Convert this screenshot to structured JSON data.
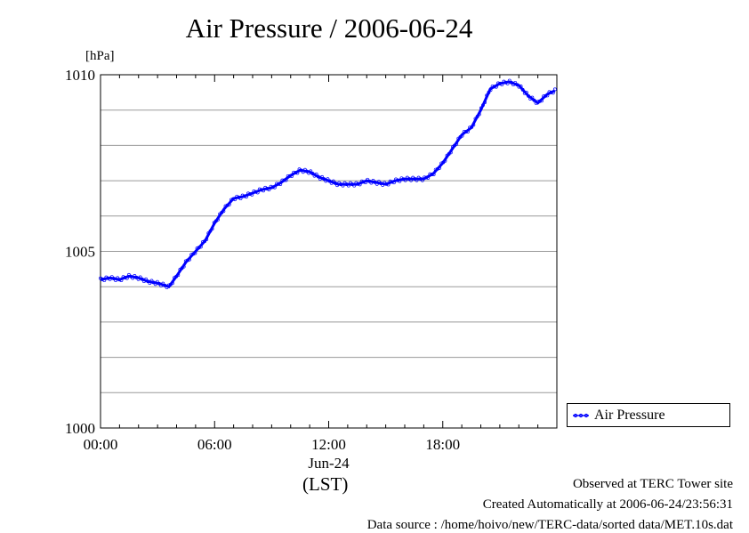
{
  "chart_data": {
    "type": "line",
    "title": "Air Pressure / 2006-06-24",
    "ylabel": "[hPa]",
    "xlabel": "(LST)",
    "date_label": "Jun-24",
    "ylim": [
      1000,
      1010
    ],
    "xlim": [
      0,
      24
    ],
    "y_ticks": [
      {
        "value": 1000,
        "label": "1000"
      },
      {
        "value": 1005,
        "label": "1005"
      },
      {
        "value": 1010,
        "label": "1010"
      }
    ],
    "x_ticks": [
      {
        "value": 0,
        "label": "00:00"
      },
      {
        "value": 6,
        "label": "06:00"
      },
      {
        "value": 12,
        "label": "12:00"
      },
      {
        "value": 18,
        "label": "18:00"
      }
    ],
    "grid": true,
    "legend_position": "right",
    "series": [
      {
        "name": "Air Pressure",
        "color": "#0000ff",
        "x": [
          0,
          0.5,
          1.0,
          1.5,
          2.0,
          2.5,
          3.0,
          3.3,
          3.6,
          4.0,
          4.5,
          5.0,
          5.5,
          6.0,
          6.5,
          7.0,
          7.5,
          8.0,
          8.5,
          9.0,
          9.5,
          10.0,
          10.5,
          11.0,
          11.5,
          12.0,
          12.5,
          13.0,
          13.5,
          14.0,
          14.5,
          15.0,
          15.5,
          16.0,
          16.5,
          17.0,
          17.5,
          18.0,
          18.5,
          19.0,
          19.5,
          20.0,
          20.5,
          21.0,
          21.5,
          22.0,
          22.5,
          23.0,
          23.5,
          23.9
        ],
        "y": [
          1004.2,
          1004.25,
          1004.2,
          1004.3,
          1004.25,
          1004.15,
          1004.1,
          1004.05,
          1004.0,
          1004.3,
          1004.7,
          1005.0,
          1005.3,
          1005.8,
          1006.2,
          1006.5,
          1006.55,
          1006.65,
          1006.75,
          1006.8,
          1006.95,
          1007.15,
          1007.3,
          1007.25,
          1007.1,
          1007.0,
          1006.9,
          1006.9,
          1006.9,
          1007.0,
          1006.95,
          1006.9,
          1007.0,
          1007.05,
          1007.05,
          1007.05,
          1007.2,
          1007.5,
          1007.9,
          1008.3,
          1008.5,
          1009.0,
          1009.6,
          1009.75,
          1009.8,
          1009.7,
          1009.4,
          1009.2,
          1009.45,
          1009.55
        ]
      }
    ]
  },
  "footer": {
    "observed": "Observed at TERC Tower site",
    "created": "Created Automatically at 2006-06-24/23:56:31",
    "source": "Data source : /home/hoivo/new/TERC-data/sorted  data/MET.10s.dat"
  }
}
